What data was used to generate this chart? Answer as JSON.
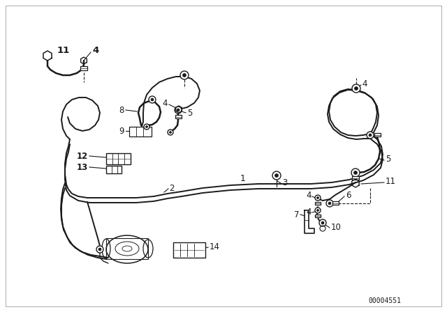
{
  "bg_color": "#ffffff",
  "line_color": "#1a1a1a",
  "figure_size": [
    6.4,
    4.48
  ],
  "dpi": 100,
  "part_number": "00004551",
  "border_color": "#cccccc"
}
